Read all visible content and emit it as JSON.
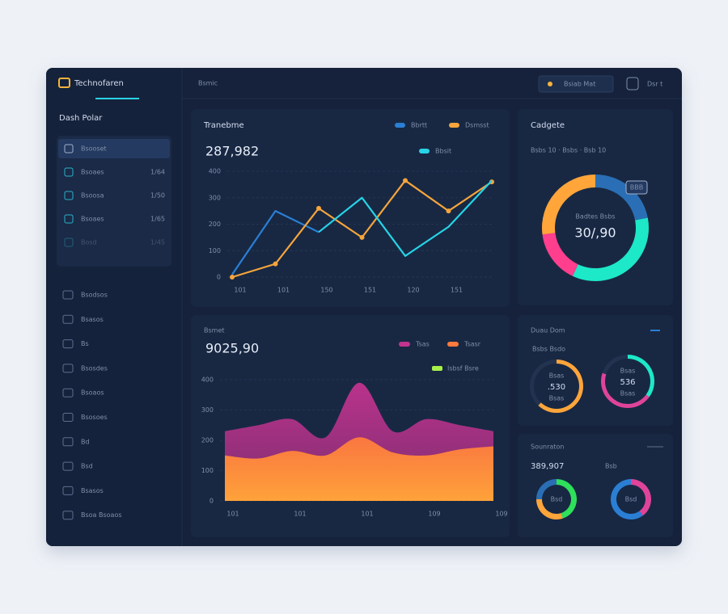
{
  "app": {
    "brand": "Technofaren",
    "tab": "Bsmic",
    "search": "Bsiab Mat",
    "user": "Dsr t"
  },
  "sidebar": {
    "title": "Dash Polar",
    "top_items": [
      {
        "label": "Bsooset"
      },
      {
        "label": "Bsoaes",
        "badge": "1/64"
      },
      {
        "label": "Bsoosa",
        "badge": "1/50"
      },
      {
        "label": "Bsoaes",
        "badge": "1/65"
      },
      {
        "label": "Bosd",
        "badge": "1/45"
      }
    ],
    "items": [
      "Bsodsos",
      "Bsasos",
      "Bs",
      "Bsosdes",
      "Bsoaos",
      "Bsosoes",
      "Bd",
      "Bsd",
      "Bsasos",
      "Bsoa Bsoaos"
    ]
  },
  "chart_data": [
    {
      "type": "line",
      "title": "Tranebme",
      "headline": "287,982",
      "categories": [
        "101",
        "101",
        "150",
        "151",
        "120",
        "151",
        null
      ],
      "ylim": [
        0,
        400
      ],
      "yticks": [
        0,
        100,
        200,
        300,
        400
      ],
      "grid": true,
      "series": [
        {
          "name": "Bbrtt",
          "color": "#2a7fd4",
          "values": [
            10,
            250,
            170,
            null,
            null,
            null,
            null
          ]
        },
        {
          "name": "Dsmsst",
          "color": "#f6a53c",
          "values": [
            0,
            50,
            260,
            150,
            365,
            250,
            360
          ],
          "markers": true
        },
        {
          "name": "Bbsit",
          "color": "#27d3e6",
          "values": [
            null,
            null,
            170,
            300,
            80,
            190,
            365
          ]
        }
      ]
    },
    {
      "type": "area",
      "title": "Bsmet",
      "headline": "9025,90",
      "note": "Isbsf Bsre",
      "note_color": "#a8f04a",
      "categories": [
        "101",
        null,
        "101",
        null,
        "101",
        null,
        "109",
        null,
        "109"
      ],
      "ylim": [
        0,
        400
      ],
      "yticks": [
        0,
        100,
        200,
        300,
        400
      ],
      "grid": true,
      "series": [
        {
          "name": "Tsas",
          "color": "#c2338f",
          "values": [
            230,
            250,
            270,
            210,
            390,
            230,
            270,
            250,
            230
          ]
        },
        {
          "name": "Tsasr",
          "color": "#ff7a3d",
          "values": [
            150,
            140,
            165,
            150,
            210,
            160,
            150,
            170,
            180
          ]
        }
      ]
    },
    {
      "type": "donut",
      "title": "Cadgete",
      "subtitle": "Bsbs 10 · Bsbs · Bsb 10",
      "tag": "BBB",
      "center_label": "Badtes Bsbs",
      "center_value": "30/,90",
      "values": [
        22,
        35,
        16,
        27
      ],
      "colors": [
        "#2a6fb5",
        "#1de8c8",
        "#ff3e8e",
        "#ffa53a"
      ]
    },
    {
      "type": "gauges",
      "title": "Duau Dom",
      "subtitle": "Bsbs Bsdo",
      "gauges": [
        {
          "caption": "Bsas",
          "figure": ".530",
          "sub": "Bsas",
          "values": [
            62
          ],
          "colors": [
            "#ffa53a"
          ]
        },
        {
          "caption": "Bsas",
          "figure": "536",
          "sub": "Bsas",
          "values": [
            35,
            45
          ],
          "colors": [
            "#1de8c8",
            "#e0449a"
          ]
        }
      ]
    },
    {
      "type": "rings",
      "title": "Sounraton",
      "headline": "389,907",
      "subtitle": "Bsb",
      "rings": [
        {
          "label": "Bsd",
          "values": [
            45,
            30,
            25
          ],
          "colors": [
            "#2ee05a",
            "#ffa53a",
            "#2a6fb5"
          ]
        },
        {
          "label": "Bsd",
          "values": [
            40,
            60
          ],
          "colors": [
            "#e0449a",
            "#2a7fd4"
          ]
        }
      ]
    }
  ]
}
